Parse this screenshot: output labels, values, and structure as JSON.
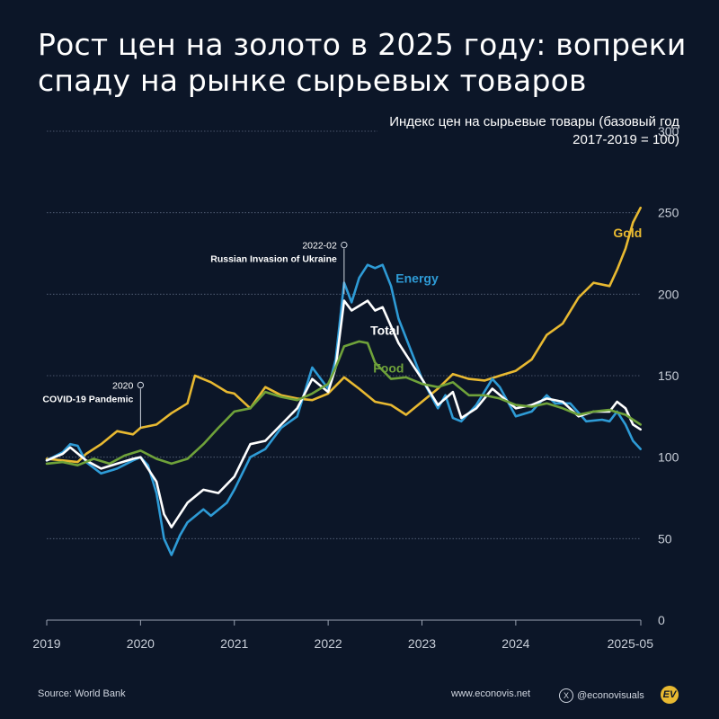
{
  "title": "Рост цен на золото в 2025 году: вопреки спаду на рынке сырьевых товаров",
  "footer": {
    "source": "Source: World Bank",
    "website": "www.econovis.net",
    "social": "@econovisuals",
    "x_icon": "x-icon",
    "logo_text": "EV"
  },
  "chart_data": {
    "type": "line",
    "title": "Рост цен на золото в 2025 году: вопреки спаду на рынке сырьевых товаров",
    "ylabel": "Индекс цен на сырьевые товары (базовый год 2017-2019 = 100)",
    "xlabel": "",
    "ylim": [
      0,
      300
    ],
    "yticks": [
      0,
      50,
      100,
      150,
      200,
      250,
      300
    ],
    "xlim": [
      2019.0,
      2025.333
    ],
    "xticks": [
      {
        "value": 2019,
        "label": "2019"
      },
      {
        "value": 2020,
        "label": "2020"
      },
      {
        "value": 2021,
        "label": "2021"
      },
      {
        "value": 2022,
        "label": "2022"
      },
      {
        "value": 2023,
        "label": "2023"
      },
      {
        "value": 2024,
        "label": "2024"
      },
      {
        "value": 2025.333,
        "label": "2025-05"
      }
    ],
    "grid": true,
    "series": [
      {
        "name": "Gold",
        "color": "#e8b931",
        "label_x": 2025.04,
        "label_y": 235,
        "points": [
          [
            2019.0,
            99
          ],
          [
            2019.17,
            98
          ],
          [
            2019.33,
            97
          ],
          [
            2019.42,
            102
          ],
          [
            2019.58,
            108
          ],
          [
            2019.75,
            116
          ],
          [
            2019.92,
            114
          ],
          [
            2020.0,
            118
          ],
          [
            2020.17,
            120
          ],
          [
            2020.33,
            127
          ],
          [
            2020.5,
            133
          ],
          [
            2020.58,
            150
          ],
          [
            2020.75,
            146
          ],
          [
            2020.92,
            140
          ],
          [
            2021.0,
            139
          ],
          [
            2021.17,
            130
          ],
          [
            2021.33,
            143
          ],
          [
            2021.5,
            138
          ],
          [
            2021.67,
            136
          ],
          [
            2021.83,
            135
          ],
          [
            2022.0,
            139
          ],
          [
            2022.17,
            149
          ],
          [
            2022.33,
            142
          ],
          [
            2022.5,
            134
          ],
          [
            2022.67,
            132
          ],
          [
            2022.83,
            126
          ],
          [
            2023.0,
            134
          ],
          [
            2023.17,
            142
          ],
          [
            2023.33,
            151
          ],
          [
            2023.5,
            148
          ],
          [
            2023.67,
            147
          ],
          [
            2023.83,
            150
          ],
          [
            2024.0,
            153
          ],
          [
            2024.17,
            160
          ],
          [
            2024.33,
            175
          ],
          [
            2024.5,
            182
          ],
          [
            2024.67,
            198
          ],
          [
            2024.83,
            207
          ],
          [
            2025.0,
            205
          ],
          [
            2025.08,
            215
          ],
          [
            2025.17,
            228
          ],
          [
            2025.25,
            244
          ],
          [
            2025.33,
            253
          ]
        ]
      },
      {
        "name": "Energy",
        "color": "#2e9bd6",
        "label_x": 2022.72,
        "label_y": 207,
        "points": [
          [
            2019.0,
            98
          ],
          [
            2019.17,
            103
          ],
          [
            2019.25,
            108
          ],
          [
            2019.33,
            107
          ],
          [
            2019.42,
            97
          ],
          [
            2019.58,
            90
          ],
          [
            2019.75,
            93
          ],
          [
            2019.92,
            98
          ],
          [
            2020.0,
            100
          ],
          [
            2020.08,
            95
          ],
          [
            2020.17,
            78
          ],
          [
            2020.25,
            50
          ],
          [
            2020.33,
            40
          ],
          [
            2020.42,
            52
          ],
          [
            2020.5,
            60
          ],
          [
            2020.67,
            68
          ],
          [
            2020.75,
            64
          ],
          [
            2020.92,
            72
          ],
          [
            2021.0,
            80
          ],
          [
            2021.17,
            100
          ],
          [
            2021.33,
            105
          ],
          [
            2021.5,
            118
          ],
          [
            2021.67,
            125
          ],
          [
            2021.83,
            155
          ],
          [
            2022.0,
            142
          ],
          [
            2022.08,
            160
          ],
          [
            2022.17,
            207
          ],
          [
            2022.25,
            195
          ],
          [
            2022.33,
            210
          ],
          [
            2022.42,
            218
          ],
          [
            2022.5,
            216
          ],
          [
            2022.58,
            218
          ],
          [
            2022.67,
            205
          ],
          [
            2022.75,
            185
          ],
          [
            2022.92,
            160
          ],
          [
            2023.0,
            148
          ],
          [
            2023.17,
            130
          ],
          [
            2023.25,
            138
          ],
          [
            2023.33,
            124
          ],
          [
            2023.42,
            122
          ],
          [
            2023.58,
            132
          ],
          [
            2023.75,
            148
          ],
          [
            2023.83,
            143
          ],
          [
            2024.0,
            125
          ],
          [
            2024.17,
            128
          ],
          [
            2024.33,
            138
          ],
          [
            2024.42,
            133
          ],
          [
            2024.58,
            133
          ],
          [
            2024.75,
            122
          ],
          [
            2024.92,
            123
          ],
          [
            2025.0,
            122
          ],
          [
            2025.08,
            128
          ],
          [
            2025.17,
            120
          ],
          [
            2025.25,
            110
          ],
          [
            2025.33,
            105
          ]
        ]
      },
      {
        "name": "Total",
        "color": "#ffffff",
        "label_x": 2022.45,
        "label_y": 175,
        "points": [
          [
            2019.0,
            98
          ],
          [
            2019.17,
            102
          ],
          [
            2019.25,
            106
          ],
          [
            2019.42,
            98
          ],
          [
            2019.58,
            93
          ],
          [
            2019.75,
            96
          ],
          [
            2019.92,
            99
          ],
          [
            2020.0,
            100
          ],
          [
            2020.17,
            85
          ],
          [
            2020.25,
            65
          ],
          [
            2020.33,
            57
          ],
          [
            2020.5,
            72
          ],
          [
            2020.67,
            80
          ],
          [
            2020.83,
            78
          ],
          [
            2021.0,
            88
          ],
          [
            2021.17,
            108
          ],
          [
            2021.33,
            110
          ],
          [
            2021.5,
            120
          ],
          [
            2021.67,
            130
          ],
          [
            2021.83,
            148
          ],
          [
            2022.0,
            140
          ],
          [
            2022.08,
            155
          ],
          [
            2022.17,
            196
          ],
          [
            2022.25,
            190
          ],
          [
            2022.42,
            196
          ],
          [
            2022.5,
            190
          ],
          [
            2022.58,
            192
          ],
          [
            2022.75,
            170
          ],
          [
            2022.92,
            155
          ],
          [
            2023.0,
            148
          ],
          [
            2023.17,
            132
          ],
          [
            2023.33,
            140
          ],
          [
            2023.42,
            124
          ],
          [
            2023.58,
            130
          ],
          [
            2023.75,
            142
          ],
          [
            2024.0,
            130
          ],
          [
            2024.17,
            132
          ],
          [
            2024.33,
            136
          ],
          [
            2024.5,
            134
          ],
          [
            2024.67,
            125
          ],
          [
            2024.83,
            128
          ],
          [
            2025.0,
            128
          ],
          [
            2025.08,
            134
          ],
          [
            2025.17,
            130
          ],
          [
            2025.25,
            120
          ],
          [
            2025.33,
            117
          ]
        ]
      },
      {
        "name": "Food",
        "color": "#6fa23a",
        "label_x": 2022.48,
        "label_y": 152,
        "points": [
          [
            2019.0,
            96
          ],
          [
            2019.17,
            97
          ],
          [
            2019.33,
            95
          ],
          [
            2019.5,
            99
          ],
          [
            2019.67,
            96
          ],
          [
            2019.83,
            101
          ],
          [
            2020.0,
            104
          ],
          [
            2020.17,
            99
          ],
          [
            2020.33,
            96
          ],
          [
            2020.5,
            99
          ],
          [
            2020.67,
            108
          ],
          [
            2020.83,
            118
          ],
          [
            2021.0,
            128
          ],
          [
            2021.17,
            130
          ],
          [
            2021.33,
            140
          ],
          [
            2021.5,
            137
          ],
          [
            2021.67,
            135
          ],
          [
            2021.83,
            139
          ],
          [
            2022.0,
            145
          ],
          [
            2022.08,
            155
          ],
          [
            2022.17,
            168
          ],
          [
            2022.33,
            171
          ],
          [
            2022.42,
            170
          ],
          [
            2022.5,
            158
          ],
          [
            2022.67,
            148
          ],
          [
            2022.83,
            149
          ],
          [
            2023.0,
            145
          ],
          [
            2023.17,
            143
          ],
          [
            2023.33,
            146
          ],
          [
            2023.5,
            138
          ],
          [
            2023.67,
            138
          ],
          [
            2023.83,
            136
          ],
          [
            2024.0,
            132
          ],
          [
            2024.17,
            131
          ],
          [
            2024.33,
            133
          ],
          [
            2024.5,
            130
          ],
          [
            2024.67,
            126
          ],
          [
            2024.83,
            128
          ],
          [
            2025.0,
            129
          ],
          [
            2025.17,
            126
          ],
          [
            2025.33,
            120
          ]
        ]
      }
    ],
    "annotations": [
      {
        "date_label": "2022-02",
        "text": "Russian Invasion of Ukraine",
        "x": 2022.17,
        "y_top": 228
      },
      {
        "date_label": "2020",
        "text": "COVID-19 Pandemic",
        "x": 2020.0,
        "y_top": 142
      }
    ]
  }
}
